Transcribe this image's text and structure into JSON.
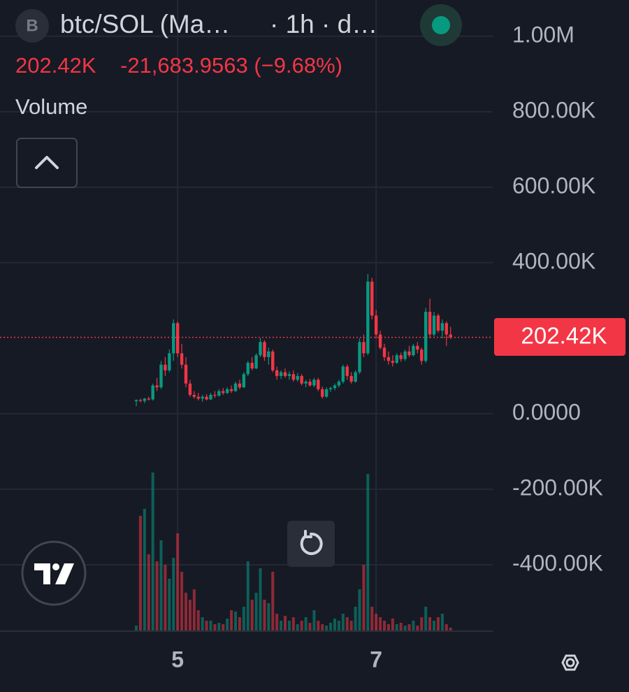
{
  "chart_data": {
    "type": "candlestick",
    "symbol_icon": "B",
    "title": "btc/SOL (Ma…",
    "subtitle": "· 1h · d…",
    "last_price": {
      "value": 202420,
      "label": "202.42K"
    },
    "change": "-21,683.9563 (−9.68%)",
    "indicator": "Volume",
    "up_color": "#089981",
    "down_color": "#f23645",
    "grid": true,
    "ylim": [
      -576000,
      1096000
    ],
    "yticks": [
      {
        "value": 1000000,
        "label": "1.00M"
      },
      {
        "value": 800000,
        "label": "800.00K"
      },
      {
        "value": 600000,
        "label": "600.00K"
      },
      {
        "value": 400000,
        "label": "400.00K"
      },
      {
        "value": 0,
        "label": "0.0000"
      },
      {
        "value": -200000,
        "label": "-200.00K"
      },
      {
        "value": -400000,
        "label": "-400.00K"
      }
    ],
    "categories": [
      null,
      null,
      null,
      null,
      null,
      null,
      null,
      null,
      null,
      null,
      "5",
      null,
      null,
      null,
      null,
      null,
      null,
      null,
      null,
      null,
      null,
      null,
      null,
      null,
      null,
      null,
      null,
      null,
      null,
      null,
      null,
      null,
      null,
      null,
      null,
      null,
      null,
      null,
      null,
      null,
      null,
      null,
      null,
      null,
      null,
      null,
      null,
      null,
      null,
      null,
      null,
      null,
      null,
      null,
      null,
      null,
      null,
      null,
      "7",
      null,
      null,
      null,
      null,
      null,
      null,
      null,
      null,
      null,
      null,
      null,
      null,
      null,
      null,
      null,
      null,
      null,
      null
    ],
    "open": [
      33000,
      36000,
      34000,
      40000,
      38000,
      75000,
      70000,
      130000,
      115000,
      160000,
      240000,
      160000,
      130000,
      80000,
      50000,
      45000,
      40000,
      45000,
      38000,
      50000,
      48000,
      60000,
      55000,
      65000,
      60000,
      80000,
      70000,
      105000,
      135000,
      120000,
      155000,
      190000,
      150000,
      165000,
      115000,
      100000,
      110000,
      100000,
      105000,
      90000,
      100000,
      80000,
      85000,
      75000,
      90000,
      65000,
      45000,
      65000,
      68000,
      75000,
      85000,
      125000,
      100000,
      85000,
      110000,
      190000,
      160000,
      350000,
      260000,
      210000,
      175000,
      150000,
      140000,
      135000,
      155000,
      145000,
      165000,
      155000,
      180000,
      170000,
      140000,
      270000,
      210000,
      260000,
      220000,
      240000,
      210000
    ],
    "high": [
      38000,
      40000,
      42000,
      45000,
      80000,
      95000,
      140000,
      150000,
      170000,
      250000,
      245000,
      185000,
      150000,
      90000,
      60000,
      55000,
      50000,
      52000,
      55000,
      60000,
      65000,
      68000,
      70000,
      75000,
      85000,
      90000,
      110000,
      140000,
      150000,
      160000,
      200000,
      195000,
      175000,
      170000,
      125000,
      115000,
      120000,
      112000,
      115000,
      108000,
      105000,
      90000,
      92000,
      95000,
      95000,
      72000,
      70000,
      72000,
      80000,
      90000,
      130000,
      130000,
      110000,
      115000,
      200000,
      210000,
      370000,
      360000,
      275000,
      220000,
      185000,
      165000,
      155000,
      160000,
      162000,
      170000,
      180000,
      185000,
      190000,
      175000,
      280000,
      305000,
      270000,
      265000,
      250000,
      245000,
      230000
    ],
    "low": [
      20000,
      30000,
      28000,
      35000,
      35000,
      60000,
      65000,
      100000,
      110000,
      140000,
      150000,
      120000,
      70000,
      45000,
      40000,
      35000,
      32000,
      35000,
      36000,
      42000,
      45000,
      50000,
      52000,
      55000,
      58000,
      65000,
      68000,
      100000,
      115000,
      118000,
      150000,
      140000,
      130000,
      110000,
      90000,
      92000,
      95000,
      90000,
      85000,
      85000,
      75000,
      70000,
      72000,
      70000,
      60000,
      40000,
      42000,
      58000,
      62000,
      70000,
      80000,
      90000,
      80000,
      82000,
      105000,
      150000,
      155000,
      250000,
      200000,
      170000,
      140000,
      130000,
      125000,
      132000,
      138000,
      140000,
      150000,
      152000,
      160000,
      130000,
      135000,
      200000,
      205000,
      215000,
      200000,
      180000,
      198000
    ],
    "close": [
      36000,
      34000,
      40000,
      38000,
      75000,
      70000,
      130000,
      115000,
      160000,
      240000,
      160000,
      130000,
      80000,
      50000,
      45000,
      40000,
      45000,
      38000,
      50000,
      48000,
      60000,
      55000,
      65000,
      60000,
      80000,
      70000,
      105000,
      135000,
      120000,
      155000,
      190000,
      150000,
      165000,
      115000,
      100000,
      110000,
      100000,
      105000,
      90000,
      100000,
      80000,
      85000,
      75000,
      90000,
      65000,
      45000,
      65000,
      68000,
      75000,
      85000,
      125000,
      100000,
      85000,
      110000,
      190000,
      160000,
      350000,
      260000,
      210000,
      175000,
      150000,
      140000,
      135000,
      155000,
      145000,
      165000,
      155000,
      180000,
      170000,
      140000,
      270000,
      210000,
      260000,
      220000,
      240000,
      210000,
      202420
    ],
    "volume": [
      8,
      165,
      175,
      110,
      227,
      100,
      130,
      95,
      75,
      105,
      140,
      85,
      55,
      45,
      60,
      30,
      20,
      15,
      15,
      10,
      12,
      10,
      18,
      30,
      28,
      20,
      35,
      100,
      45,
      55,
      90,
      45,
      40,
      85,
      25,
      15,
      22,
      15,
      20,
      10,
      15,
      20,
      12,
      30,
      15,
      10,
      8,
      12,
      18,
      15,
      25,
      20,
      15,
      35,
      60,
      95,
      225,
      35,
      25,
      20,
      15,
      10,
      18,
      10,
      12,
      8,
      10,
      15,
      8,
      20,
      35,
      20,
      15,
      20,
      25,
      10,
      5
    ]
  }
}
